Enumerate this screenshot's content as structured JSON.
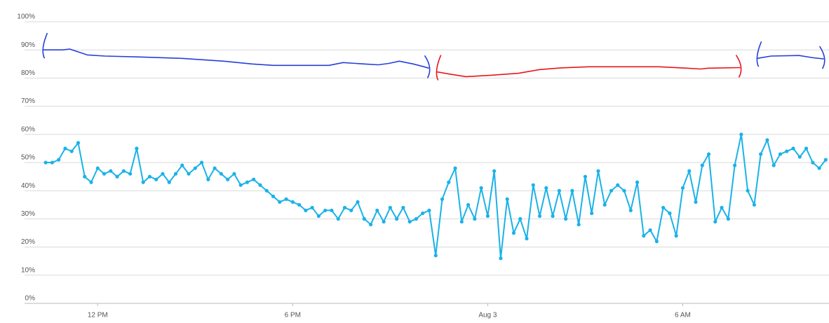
{
  "chart_data": {
    "type": "line",
    "xlim": [
      9.75,
      34.5
    ],
    "ylim": [
      0,
      100
    ],
    "xticks": [
      {
        "value": 12,
        "label": "12 PM"
      },
      {
        "value": 18,
        "label": "6 PM"
      },
      {
        "value": 24,
        "label": "Aug 3"
      },
      {
        "value": 30,
        "label": "6 AM"
      }
    ],
    "yticks": [
      {
        "value": 0,
        "label": "0%"
      },
      {
        "value": 10,
        "label": "10%"
      },
      {
        "value": 20,
        "label": "20%"
      },
      {
        "value": 30,
        "label": "30%"
      },
      {
        "value": 40,
        "label": "40%"
      },
      {
        "value": 50,
        "label": "50%"
      },
      {
        "value": 60,
        "label": "60%"
      },
      {
        "value": 70,
        "label": "70%"
      },
      {
        "value": 80,
        "label": "80%"
      },
      {
        "value": 90,
        "label": "90%"
      },
      {
        "value": 100,
        "label": "100%"
      }
    ],
    "grid": true,
    "series": [
      {
        "color": "#2640d9",
        "markers": false,
        "brackets": true,
        "x": [
          10.32,
          10.92,
          11.14,
          11.68,
          12.22,
          13.29,
          14.59,
          15.88,
          16.75,
          17.4,
          19.12,
          19.55,
          20.2,
          20.63,
          20.96,
          21.28,
          21.71,
          22.04,
          22.19
        ],
        "values": [
          90,
          90,
          90.3,
          88.2,
          87.8,
          87.5,
          87,
          86,
          85,
          84.5,
          84.5,
          85.5,
          85,
          84.7,
          85.2,
          86,
          85,
          84,
          83.5
        ]
      },
      {
        "color": "#e8161b",
        "markers": false,
        "brackets": true,
        "x": [
          22.43,
          22.79,
          23.33,
          24.09,
          24.95,
          25.6,
          26.24,
          27.11,
          29.27,
          30.13,
          30.56,
          30.78,
          31.77
        ],
        "values": [
          82.2,
          81.5,
          80.5,
          81,
          81.7,
          83,
          83.6,
          84,
          84,
          83.5,
          83.2,
          83.5,
          83.7
        ]
      },
      {
        "color": "#2640d9",
        "markers": false,
        "brackets": true,
        "x": [
          32.29,
          32.72,
          33.58,
          34.02,
          34.34
        ],
        "values": [
          87,
          87.8,
          88,
          87.2,
          86.8
        ]
      },
      {
        "color": "#1ab2e8",
        "markers": true,
        "brackets": false,
        "x": [
          10.4,
          10.6,
          10.8,
          11.0,
          11.2,
          11.4,
          11.6,
          11.8,
          12.0,
          12.2,
          12.4,
          12.6,
          12.8,
          13.0,
          13.2,
          13.4,
          13.6,
          13.8,
          14.0,
          14.2,
          14.4,
          14.6,
          14.8,
          15.0,
          15.2,
          15.4,
          15.6,
          15.8,
          16.0,
          16.2,
          16.4,
          16.6,
          16.8,
          17.0,
          17.2,
          17.4,
          17.6,
          17.8,
          18.0,
          18.2,
          18.4,
          18.6,
          18.8,
          19.0,
          19.2,
          19.4,
          19.6,
          19.8,
          20.0,
          20.2,
          20.4,
          20.6,
          20.8,
          21.0,
          21.2,
          21.4,
          21.6,
          21.8,
          22.0,
          22.2,
          22.4,
          22.6,
          22.8,
          23.0,
          23.2,
          23.4,
          23.6,
          23.8,
          24.0,
          24.2,
          24.4,
          24.6,
          24.8,
          25.0,
          25.2,
          25.4,
          25.6,
          25.8,
          26.0,
          26.2,
          26.4,
          26.6,
          26.8,
          27.0,
          27.2,
          27.4,
          27.6,
          27.8,
          28.0,
          28.2,
          28.4,
          28.6,
          28.8,
          29.0,
          29.2,
          29.4,
          29.6,
          29.8,
          30.0,
          30.2,
          30.4,
          30.6,
          30.8,
          31.0,
          31.2,
          31.4,
          31.6,
          31.8,
          32.0,
          32.2,
          32.4,
          32.6,
          32.8,
          33.0,
          33.2,
          33.4,
          33.6,
          33.8,
          34.0,
          34.2,
          34.4
        ],
        "values": [
          50,
          50,
          51,
          55,
          54,
          57,
          45,
          43,
          48,
          46,
          47,
          45,
          47,
          46,
          55,
          43,
          45,
          44,
          46,
          43,
          46,
          49,
          46,
          48,
          50,
          44,
          48,
          46,
          44,
          46,
          42,
          43,
          44,
          42,
          40,
          38,
          36,
          37,
          36,
          35,
          33,
          34,
          31,
          33,
          33,
          30,
          34,
          33,
          36,
          30,
          28,
          33,
          29,
          34,
          30,
          34,
          29,
          30,
          32,
          33,
          17,
          37,
          43,
          48,
          29,
          35,
          30,
          41,
          31,
          47,
          16,
          37,
          25,
          30,
          23,
          42,
          31,
          41,
          31,
          40,
          30,
          40,
          28,
          45,
          32,
          47,
          35,
          40,
          42,
          40,
          33,
          43,
          24,
          26,
          22,
          34,
          32,
          24,
          41,
          47,
          36,
          49,
          53,
          29,
          34,
          30,
          49,
          60,
          40,
          35,
          53,
          58,
          49,
          53,
          54,
          55,
          52,
          55,
          50,
          48,
          51
        ]
      }
    ]
  }
}
